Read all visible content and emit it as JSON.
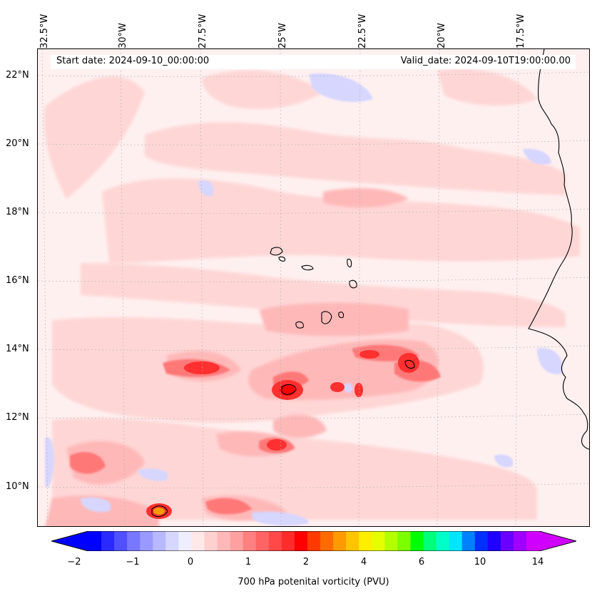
{
  "info": {
    "start_label": "Start date: 2024-09-10_00:00:00",
    "valid_label": "Valid_date: 2024-09-10T19:00:00.00"
  },
  "longitude_labels": [
    "32.5°W",
    "30°W",
    "27.5°W",
    "25°W",
    "22.5°W",
    "20°W",
    "17.5°W"
  ],
  "latitude_labels": [
    "22°N",
    "20°N",
    "18°N",
    "16°N",
    "14°N",
    "12°N",
    "10°N"
  ],
  "colorbar": {
    "title": "700 hPa potenital vorticity (PVU)",
    "tick_labels": [
      "−2",
      "−1",
      "0",
      "1",
      "2",
      "4",
      "6",
      "10",
      "14"
    ],
    "colors": [
      "#0000ff",
      "#2a2aff",
      "#5050ff",
      "#7777ff",
      "#9999ff",
      "#b8b8ff",
      "#d6d6ff",
      "#eeeeff",
      "#ffe8e8",
      "#ffd0d0",
      "#ffb8b8",
      "#ffa0a0",
      "#ff8080",
      "#ff6464",
      "#ff4848",
      "#ff2c2c",
      "#ff0000",
      "#ff3a00",
      "#ff6a00",
      "#ff9a00",
      "#ffc400",
      "#ffee00",
      "#e6ff00",
      "#b4ff00",
      "#7cff00",
      "#00ff00",
      "#00ff7a",
      "#00ffc8",
      "#00e6ff",
      "#0082ff",
      "#0030ff",
      "#2000ff",
      "#6a00ff",
      "#a000ff",
      "#d000ff"
    ],
    "under_color": "#0000ff",
    "over_color": "#d000ff"
  },
  "map_colors": {
    "background": "#fff0f0",
    "light_pink": "#ffd6d6",
    "pink": "#ffb8b8",
    "mid_red": "#ff7878",
    "red": "#ff3030",
    "pure_red": "#ff0000",
    "orange": "#ff9a00",
    "light_blue": "#d6d6ff",
    "blue": "#9999ff",
    "coast": "#000000",
    "grid": "#b0b0b0"
  }
}
